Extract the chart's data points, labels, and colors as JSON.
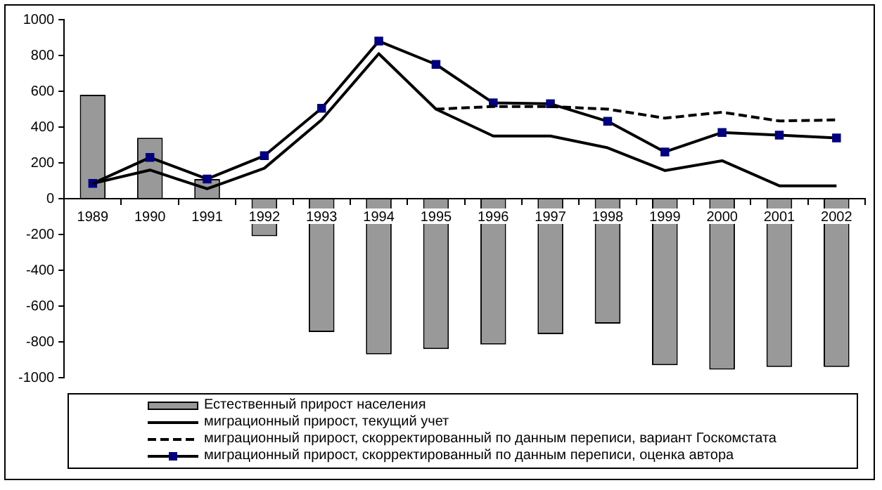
{
  "chart_data": {
    "type": "bar",
    "categories": [
      "1989",
      "1990",
      "1991",
      "1992",
      "1993",
      "1994",
      "1995",
      "1996",
      "1997",
      "1998",
      "1999",
      "2000",
      "2001",
      "2002"
    ],
    "series": [
      {
        "name": "Естественный прирост населения",
        "color": "#999999",
        "values": [
          580,
          340,
          110,
          -210,
          -745,
          -870,
          -840,
          -815,
          -757,
          -698,
          -930,
          -955,
          -940,
          -940
        ]
      },
      {
        "name": "миграционный прирост, текущий учет",
        "type": "line",
        "color": "#000000",
        "marker": "none",
        "line_style": "solid",
        "values": [
          85,
          160,
          55,
          170,
          440,
          810,
          500,
          350,
          350,
          284,
          157,
          212,
          72,
          72
        ]
      },
      {
        "name": "миграционный прирост, скорректированный по данным переписи, вариант Госкомстата",
        "type": "line",
        "color": "#000000",
        "marker": "none",
        "line_style": "dashed",
        "values": [
          null,
          null,
          null,
          null,
          null,
          null,
          500,
          515,
          515,
          500,
          450,
          483,
          434,
          440
        ]
      },
      {
        "name": "миграционный прирост, скорректированный по данным переписи, оценка автора",
        "type": "line",
        "color": "#000080",
        "marker": "square",
        "line_style": "solid",
        "values": [
          85,
          230,
          110,
          240,
          505,
          880,
          750,
          535,
          530,
          432,
          261,
          370,
          355,
          339
        ]
      }
    ],
    "ylim": [
      -1000,
      1000
    ],
    "yticks": [
      -1000,
      -800,
      -600,
      -400,
      -200,
      0,
      200,
      400,
      600,
      800,
      1000
    ],
    "grid": false,
    "legend": "bottom"
  }
}
